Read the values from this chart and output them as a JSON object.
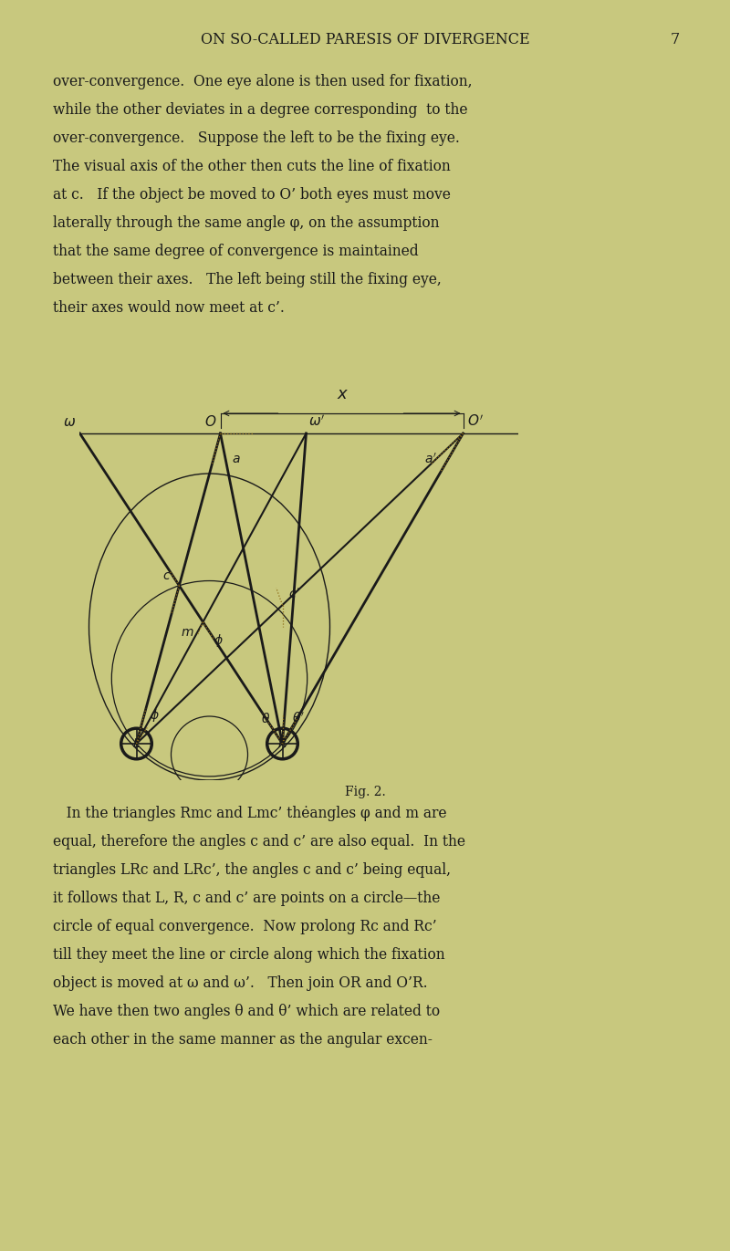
{
  "bg_color": "#c8c87e",
  "line_color": "#1a1a1a",
  "dotted_color": "#8b6914",
  "header_text": "ON SO-CALLED PARESIS OF DIVERGENCE",
  "page_number": "7",
  "fig_caption": "Fig. 2.",
  "para1_lines": [
    "over-convergence.  One eye alone is then used for fixation,",
    "while the other deviates in a degree corresponding  to the",
    "over-convergence.   Suppose the left to be the fixing eye.",
    "The visual axis of the other then cuts the line of fixation",
    "at c.   If the object be moved to O’ both eyes must move",
    "laterally through the same angle φ, on the assumption",
    "that the same degree of convergence is maintained",
    "between their axes.   The left being still the fixing eye,",
    "their axes would now meet at c’."
  ],
  "para2_lines": [
    "   In the triangles Rmc and Lmc’ thėangles φ and m are",
    "equal, therefore the angles c and c’ are also equal.  In the",
    "triangles LRc and LRc’, the angles c and c’ being equal,",
    "it follows that L, R, c and c’ are points on a circle—the",
    "circle of equal convergence.  Now prolong Rc and Rc’",
    "till they meet the line or circle along which the fixation",
    "object is moved at ω and ω’.   Then join OR and O’R.",
    "We have then two angles θ and θ’ which are related to",
    "each other in the same manner as the angular excen-"
  ]
}
